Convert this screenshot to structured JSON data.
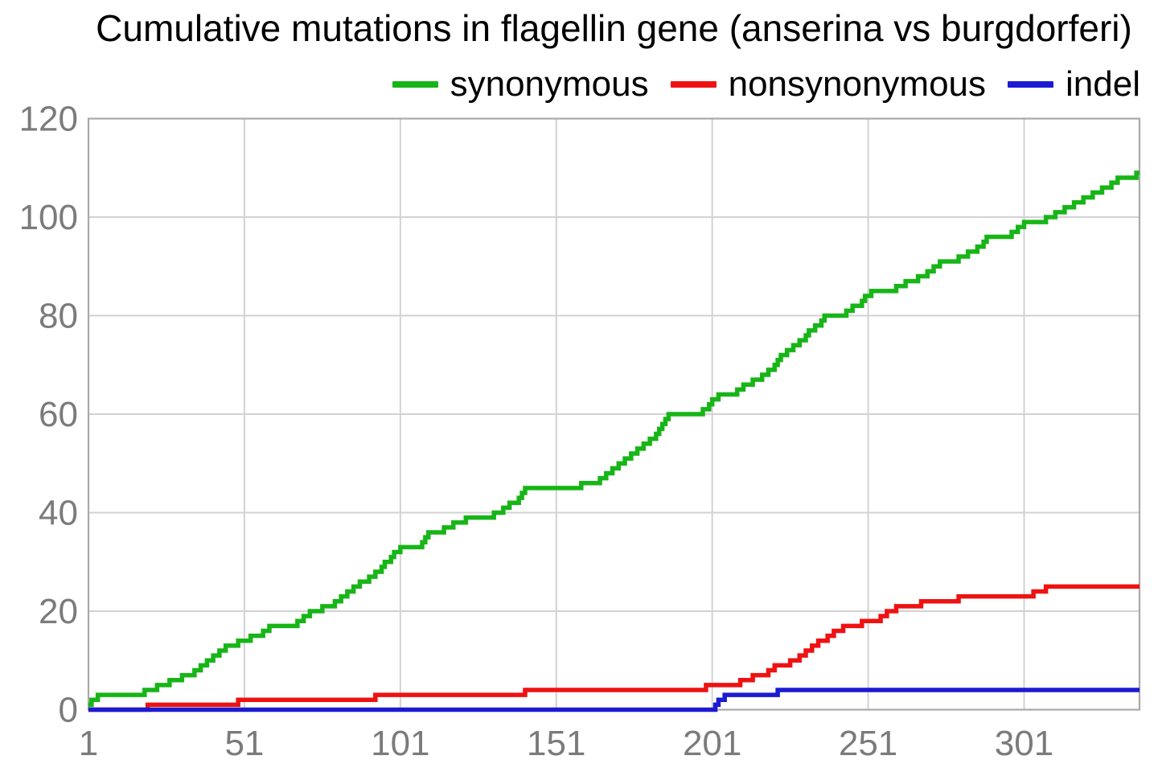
{
  "chart_data": {
    "type": "line",
    "subtype": "cumulative-step",
    "title": "Cumulative mutations in flagellin gene (anserina vs burgdorferi)",
    "xlabel": "",
    "ylabel": "",
    "x_range": [
      1,
      338
    ],
    "y_range": [
      0,
      120
    ],
    "x_ticks": [
      1,
      51,
      101,
      151,
      201,
      251,
      301
    ],
    "y_ticks": [
      0,
      20,
      40,
      60,
      80,
      100,
      120
    ],
    "grid": true,
    "legend_position": "top-right",
    "colors": {
      "grid": "#d2d2d2",
      "frame": "#a9a9a9",
      "tick_label": "#7b7b7b",
      "title": "#000000"
    },
    "series": [
      {
        "name": "synonymous",
        "color": "#17b517",
        "steps": [
          [
            1,
            1
          ],
          [
            2,
            2
          ],
          [
            4,
            3
          ],
          [
            19,
            4
          ],
          [
            23,
            5
          ],
          [
            27,
            6
          ],
          [
            31,
            7
          ],
          [
            35,
            8
          ],
          [
            37,
            9
          ],
          [
            39,
            10
          ],
          [
            41,
            11
          ],
          [
            43,
            12
          ],
          [
            45,
            13
          ],
          [
            49,
            14
          ],
          [
            53,
            15
          ],
          [
            57,
            16
          ],
          [
            59,
            17
          ],
          [
            68,
            18
          ],
          [
            70,
            19
          ],
          [
            72,
            20
          ],
          [
            76,
            21
          ],
          [
            80,
            22
          ],
          [
            82,
            23
          ],
          [
            84,
            24
          ],
          [
            86,
            25
          ],
          [
            88,
            26
          ],
          [
            91,
            27
          ],
          [
            93,
            28
          ],
          [
            95,
            29
          ],
          [
            96,
            30
          ],
          [
            98,
            31
          ],
          [
            99,
            32
          ],
          [
            101,
            33
          ],
          [
            108,
            34
          ],
          [
            109,
            35
          ],
          [
            110,
            36
          ],
          [
            115,
            37
          ],
          [
            118,
            38
          ],
          [
            122,
            39
          ],
          [
            131,
            40
          ],
          [
            134,
            41
          ],
          [
            136,
            42
          ],
          [
            139,
            43
          ],
          [
            140,
            44
          ],
          [
            141,
            45
          ],
          [
            159,
            46
          ],
          [
            165,
            47
          ],
          [
            167,
            48
          ],
          [
            169,
            49
          ],
          [
            171,
            50
          ],
          [
            173,
            51
          ],
          [
            175,
            52
          ],
          [
            177,
            53
          ],
          [
            179,
            54
          ],
          [
            181,
            55
          ],
          [
            183,
            56
          ],
          [
            184,
            57
          ],
          [
            185,
            58
          ],
          [
            186,
            59
          ],
          [
            187,
            60
          ],
          [
            198,
            61
          ],
          [
            200,
            62
          ],
          [
            201,
            63
          ],
          [
            203,
            64
          ],
          [
            209,
            65
          ],
          [
            211,
            66
          ],
          [
            214,
            67
          ],
          [
            217,
            68
          ],
          [
            219,
            69
          ],
          [
            221,
            70
          ],
          [
            222,
            71
          ],
          [
            223,
            72
          ],
          [
            225,
            73
          ],
          [
            227,
            74
          ],
          [
            229,
            75
          ],
          [
            231,
            76
          ],
          [
            232,
            77
          ],
          [
            234,
            78
          ],
          [
            236,
            79
          ],
          [
            237,
            80
          ],
          [
            244,
            81
          ],
          [
            246,
            82
          ],
          [
            249,
            83
          ],
          [
            250,
            84
          ],
          [
            252,
            85
          ],
          [
            260,
            86
          ],
          [
            263,
            87
          ],
          [
            267,
            88
          ],
          [
            270,
            89
          ],
          [
            272,
            90
          ],
          [
            274,
            91
          ],
          [
            280,
            92
          ],
          [
            283,
            93
          ],
          [
            286,
            94
          ],
          [
            288,
            95
          ],
          [
            289,
            96
          ],
          [
            297,
            97
          ],
          [
            299,
            98
          ],
          [
            301,
            99
          ],
          [
            308,
            100
          ],
          [
            311,
            101
          ],
          [
            314,
            102
          ],
          [
            317,
            103
          ],
          [
            320,
            104
          ],
          [
            323,
            105
          ],
          [
            326,
            106
          ],
          [
            329,
            107
          ],
          [
            331,
            108
          ],
          [
            337,
            109
          ]
        ]
      },
      {
        "name": "nonsynonymous",
        "color": "#ee1212",
        "steps": [
          [
            1,
            0
          ],
          [
            20,
            1
          ],
          [
            49,
            2
          ],
          [
            93,
            3
          ],
          [
            141,
            4
          ],
          [
            199,
            5
          ],
          [
            210,
            6
          ],
          [
            214,
            7
          ],
          [
            219,
            8
          ],
          [
            221,
            9
          ],
          [
            226,
            10
          ],
          [
            229,
            11
          ],
          [
            231,
            12
          ],
          [
            233,
            13
          ],
          [
            235,
            14
          ],
          [
            238,
            15
          ],
          [
            240,
            16
          ],
          [
            243,
            17
          ],
          [
            249,
            18
          ],
          [
            255,
            19
          ],
          [
            257,
            20
          ],
          [
            260,
            21
          ],
          [
            268,
            22
          ],
          [
            280,
            23
          ],
          [
            304,
            24
          ],
          [
            308,
            25
          ]
        ]
      },
      {
        "name": "indel",
        "color": "#1b1bd1",
        "steps": [
          [
            1,
            0
          ],
          [
            202,
            1
          ],
          [
            203,
            2
          ],
          [
            205,
            3
          ],
          [
            222,
            4
          ]
        ]
      }
    ]
  }
}
